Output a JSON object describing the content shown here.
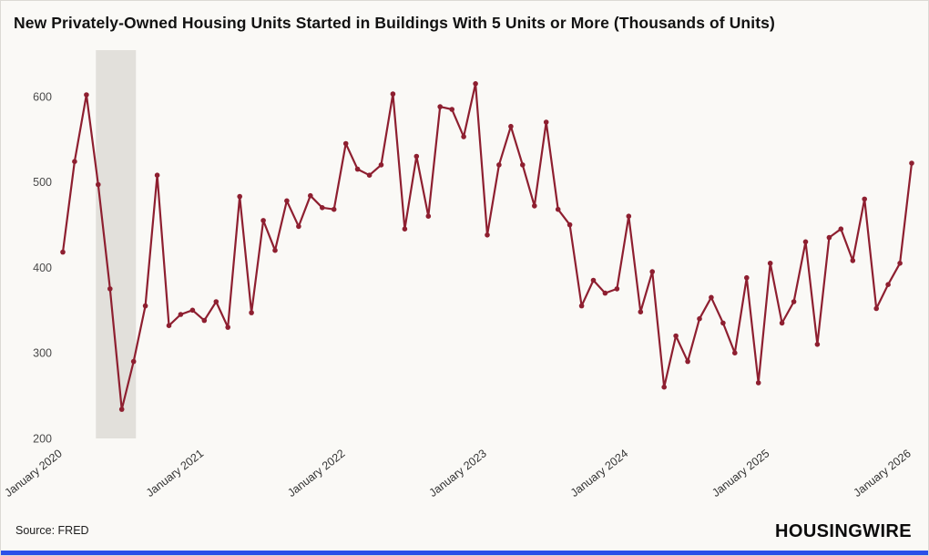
{
  "source": "Source: FRED",
  "logo": "HOUSINGWIRE",
  "colors": {
    "line": "#8e1f30",
    "marker": "#8e1f30",
    "band": "#e2e0db",
    "accent_bar": "#2b50e8",
    "background": "#faf9f6",
    "ytick_text": "#4a4a4a",
    "xtick_text": "#333333"
  },
  "chart_data": {
    "type": "line",
    "title": "New Privately-Owned Housing Units Started in Buildings With 5 Units or More (Thousands of Units)",
    "xlabel": "",
    "ylabel": "",
    "frequency": "monthly",
    "start_month": "January 2020",
    "end_month": "January 2026",
    "x_tick_labels": [
      "January 2020",
      "January 2021",
      "January 2022",
      "January 2023",
      "January 2024",
      "January 2025",
      "January 2026"
    ],
    "x_tick_indices": [
      0,
      12,
      24,
      36,
      48,
      60,
      72
    ],
    "yticks": [
      200,
      300,
      400,
      500,
      600
    ],
    "ylim": [
      200,
      650
    ],
    "grid": false,
    "legend": "none",
    "recession_band": {
      "start_index": 2.8,
      "end_index": 6.2
    },
    "values": [
      418,
      524,
      602,
      497,
      375,
      234,
      290,
      355,
      508,
      332,
      345,
      350,
      338,
      360,
      330,
      483,
      347,
      455,
      420,
      478,
      448,
      484,
      470,
      468,
      545,
      515,
      508,
      520,
      603,
      445,
      530,
      460,
      588,
      585,
      553,
      615,
      438,
      520,
      565,
      520,
      472,
      570,
      468,
      450,
      355,
      385,
      370,
      375,
      460,
      348,
      395,
      260,
      320,
      290,
      340,
      365,
      335,
      300,
      388,
      265,
      405,
      335,
      360,
      430,
      310,
      435,
      445,
      408,
      480,
      352,
      380,
      405,
      522
    ]
  }
}
